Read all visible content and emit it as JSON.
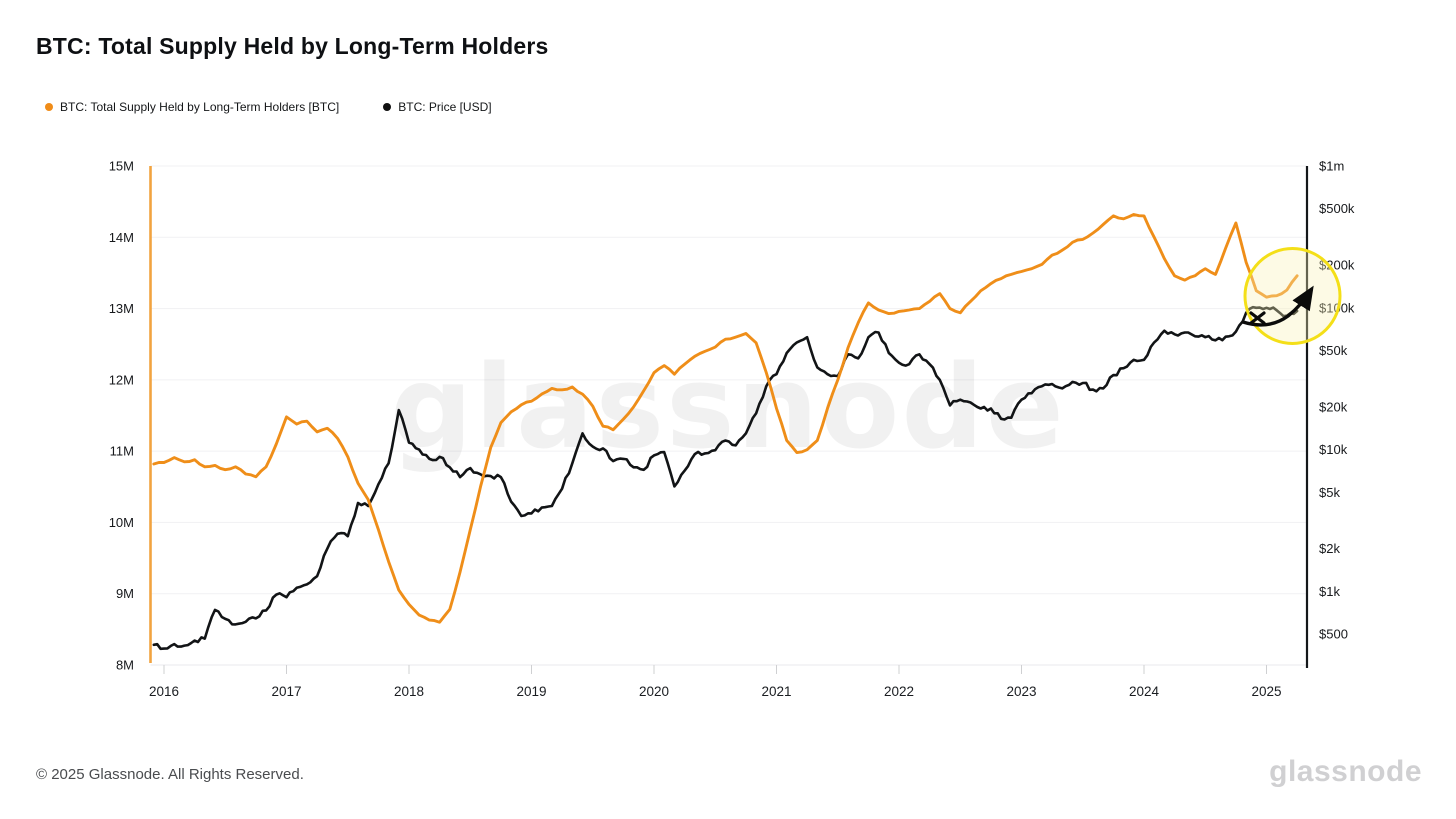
{
  "header": {
    "title": "BTC: Total Supply Held by Long-Term Holders"
  },
  "legend": [
    {
      "label": "BTC: Total Supply Held by Long-Term Holders [BTC]",
      "color": "#f08c18"
    },
    {
      "label": "BTC: Price [USD]",
      "color": "#111111"
    }
  ],
  "watermark": "glassnode",
  "footer": {
    "copyright": "© 2025 Glassnode. All Rights Reserved.",
    "brand": "glassnode"
  },
  "chart_data": {
    "type": "line",
    "title": "BTC: Total Supply Held by Long-Term Holders",
    "x_axis": {
      "ticks": [
        "2016",
        "2017",
        "2018",
        "2019",
        "2020",
        "2021",
        "2022",
        "2023",
        "2024",
        "2025"
      ],
      "tick_values": [
        2016,
        2017,
        2018,
        2019,
        2020,
        2021,
        2022,
        2023,
        2024,
        2025
      ],
      "range_decimal_years": [
        2015.9,
        2025.33
      ]
    },
    "left_axis": {
      "scale": "linear",
      "unit": "BTC (millions)",
      "ticks": [
        "15M",
        "14M",
        "13M",
        "12M",
        "11M",
        "10M",
        "9M",
        "8M"
      ],
      "tick_values": [
        15,
        14,
        13,
        12,
        11,
        10,
        9,
        8
      ],
      "range": [
        8,
        15
      ],
      "grid": true
    },
    "right_axis": {
      "scale": "log",
      "unit": "USD",
      "ticks": [
        "$1m",
        "$500k",
        "$200k",
        "$100k",
        "$50k",
        "$20k",
        "$10k",
        "$5k",
        "$2k",
        "$1k",
        "$500"
      ],
      "tick_values": [
        1000000,
        500000,
        200000,
        100000,
        50000,
        20000,
        10000,
        5000,
        2000,
        1000,
        500
      ]
    },
    "months": [
      "2015-12",
      "2016-01",
      "2016-02",
      "2016-03",
      "2016-04",
      "2016-05",
      "2016-06",
      "2016-07",
      "2016-08",
      "2016-09",
      "2016-10",
      "2016-11",
      "2016-12",
      "2017-01",
      "2017-02",
      "2017-03",
      "2017-04",
      "2017-05",
      "2017-06",
      "2017-07",
      "2017-08",
      "2017-09",
      "2017-10",
      "2017-11",
      "2017-12",
      "2018-01",
      "2018-02",
      "2018-03",
      "2018-04",
      "2018-05",
      "2018-06",
      "2018-07",
      "2018-08",
      "2018-09",
      "2018-10",
      "2018-11",
      "2018-12",
      "2019-01",
      "2019-02",
      "2019-03",
      "2019-04",
      "2019-05",
      "2019-06",
      "2019-07",
      "2019-08",
      "2019-09",
      "2019-10",
      "2019-11",
      "2019-12",
      "2020-01",
      "2020-02",
      "2020-03",
      "2020-04",
      "2020-05",
      "2020-06",
      "2020-07",
      "2020-08",
      "2020-09",
      "2020-10",
      "2020-11",
      "2020-12",
      "2021-01",
      "2021-02",
      "2021-03",
      "2021-04",
      "2021-05",
      "2021-06",
      "2021-07",
      "2021-08",
      "2021-09",
      "2021-10",
      "2021-11",
      "2021-12",
      "2022-01",
      "2022-02",
      "2022-03",
      "2022-04",
      "2022-05",
      "2022-06",
      "2022-07",
      "2022-08",
      "2022-09",
      "2022-10",
      "2022-11",
      "2022-12",
      "2023-01",
      "2023-02",
      "2023-03",
      "2023-04",
      "2023-05",
      "2023-06",
      "2023-07",
      "2023-08",
      "2023-09",
      "2023-10",
      "2023-11",
      "2023-12",
      "2024-01",
      "2024-02",
      "2024-03",
      "2024-04",
      "2024-05",
      "2024-06",
      "2024-07",
      "2024-08",
      "2024-09",
      "2024-10",
      "2024-11",
      "2024-12",
      "2025-01",
      "2025-02",
      "2025-03",
      "2025-04"
    ],
    "series": [
      {
        "name": "BTC: Total Supply Held by Long-Term Holders [BTC]",
        "axis": "left",
        "color": "#ef8e19",
        "unit": "million BTC",
        "values": [
          10.82,
          10.84,
          10.91,
          10.85,
          10.88,
          10.78,
          10.8,
          10.74,
          10.78,
          10.68,
          10.64,
          10.78,
          11.1,
          11.48,
          11.38,
          11.42,
          11.27,
          11.32,
          11.18,
          10.92,
          10.55,
          10.32,
          9.9,
          9.45,
          9.05,
          8.85,
          8.7,
          8.63,
          8.6,
          8.78,
          9.3,
          9.9,
          10.5,
          11.05,
          11.4,
          11.55,
          11.65,
          11.7,
          11.8,
          11.88,
          11.86,
          11.9,
          11.8,
          11.63,
          11.35,
          11.3,
          11.45,
          11.62,
          11.85,
          12.1,
          12.2,
          12.08,
          12.22,
          12.33,
          12.4,
          12.46,
          12.57,
          12.6,
          12.65,
          12.52,
          12.1,
          11.6,
          11.15,
          10.98,
          11.02,
          11.15,
          11.6,
          12.0,
          12.45,
          12.8,
          13.08,
          12.98,
          12.93,
          12.96,
          12.98,
          13.0,
          13.1,
          13.21,
          13.0,
          12.94,
          13.1,
          13.25,
          13.35,
          13.42,
          13.48,
          13.52,
          13.56,
          13.62,
          13.75,
          13.82,
          13.93,
          13.97,
          14.06,
          14.18,
          14.3,
          14.26,
          14.32,
          14.3,
          14.0,
          13.7,
          13.46,
          13.4,
          13.46,
          13.56,
          13.48,
          13.85,
          14.2,
          13.65,
          13.25,
          13.16,
          13.18,
          13.26,
          13.46
        ]
      },
      {
        "name": "BTC: Price [USD]",
        "axis": "right",
        "color": "#121416",
        "unit": "USD",
        "values": [
          420,
          395,
          425,
          415,
          450,
          465,
          740,
          640,
          585,
          610,
          645,
          735,
          950,
          910,
          1060,
          1120,
          1280,
          2000,
          2550,
          2450,
          4200,
          4000,
          5700,
          8000,
          19000,
          11200,
          10000,
          8600,
          8900,
          7500,
          6400,
          7400,
          6700,
          6500,
          6400,
          4300,
          3400,
          3550,
          3900,
          4000,
          5300,
          8000,
          13000,
          10500,
          10200,
          8300,
          8600,
          7500,
          7200,
          9100,
          9600,
          5500,
          7100,
          9300,
          9400,
          9900,
          11600,
          10700,
          13000,
          18000,
          28000,
          34000,
          48000,
          57000,
          62000,
          38000,
          34000,
          33000,
          47000,
          44000,
          62000,
          67000,
          48000,
          41000,
          40000,
          47000,
          40000,
          31000,
          20500,
          22500,
          21500,
          19500,
          19500,
          16500,
          16800,
          22500,
          25000,
          28000,
          29000,
          27000,
          30000,
          29500,
          26500,
          27000,
          33500,
          37500,
          43000,
          43000,
          57000,
          69000,
          65000,
          67000,
          63000,
          62000,
          59000,
          62500,
          68000,
          92000,
          100000,
          100000,
          96000,
          88000,
          95000
        ]
      }
    ],
    "annotation": {
      "type": "highlight-circle-with-arrow",
      "description": "Hand-drawn yellow circle over early-2025 region with black arrow pointing up and to the right",
      "circle_color": "#f4df18",
      "arrow_color": "#0b0b0b"
    }
  }
}
